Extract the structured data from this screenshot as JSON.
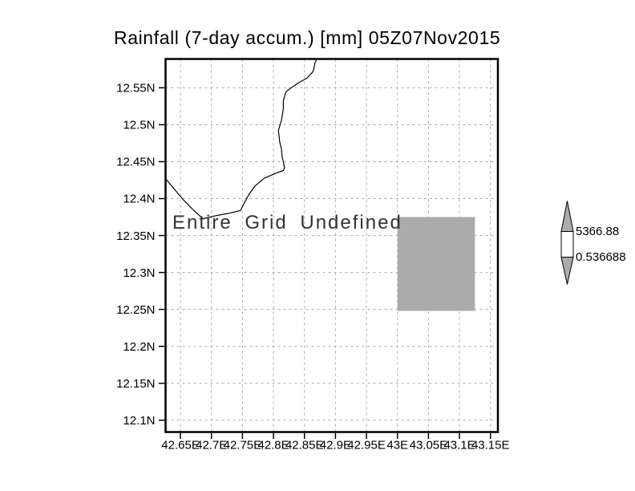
{
  "title": "Rainfall (7-day accum.) [mm] 05Z07Nov2015",
  "overlay_message": "Entire Grid Undefined",
  "colorbar": {
    "position": "right",
    "max_label": "5366.88",
    "min_label": "0.536688",
    "arrow_fill": "#ababab",
    "box_fill": "#ffffff",
    "outline": "#000000"
  },
  "chart_data": {
    "type": "heatmap",
    "subtype": "geographic-grid-map",
    "title": "Rainfall (7-day accum.) [mm] 05Z07Nov2015",
    "status_message": "Entire Grid Undefined",
    "x_axis": {
      "unit": "longitude (deg E)",
      "range": [
        42.626,
        43.162
      ],
      "tick_values": [
        42.65,
        42.7,
        42.75,
        42.8,
        42.85,
        42.9,
        42.95,
        43.0,
        43.05,
        43.1,
        43.15
      ],
      "tick_labels": [
        "42.65E",
        "42.7E",
        "42.75E",
        "42.8E",
        "42.85E",
        "42.9E",
        "42.95E",
        "43E",
        "43.05E",
        "43.1E",
        "43.15E"
      ]
    },
    "y_axis": {
      "unit": "latitude (deg N)",
      "range": [
        12.084,
        12.589
      ],
      "tick_values": [
        12.55,
        12.5,
        12.45,
        12.4,
        12.35,
        12.3,
        12.25,
        12.2,
        12.15,
        12.1
      ],
      "tick_labels": [
        "12.55N",
        "12.5N",
        "12.45N",
        "12.4N",
        "12.35N",
        "12.3N",
        "12.25N",
        "12.2N",
        "12.15N",
        "12.1N"
      ]
    },
    "grid": {
      "visible": true,
      "style": "dashed",
      "color": "#a8a8a8"
    },
    "values_plotted": "none (entire grid undefined)",
    "missing_data_box": {
      "lon": [
        43.0,
        43.125
      ],
      "lat": [
        12.248,
        12.375
      ],
      "fill": "#ababab"
    },
    "coastline": [
      [
        42.87,
        12.589
      ],
      [
        42.867,
        12.584
      ],
      [
        42.865,
        12.575
      ],
      [
        42.863,
        12.571
      ],
      [
        42.854,
        12.563
      ],
      [
        42.841,
        12.557
      ],
      [
        42.827,
        12.549
      ],
      [
        42.821,
        12.545
      ],
      [
        42.819,
        12.542
      ],
      [
        42.816,
        12.532
      ],
      [
        42.816,
        12.522
      ],
      [
        42.813,
        12.506
      ],
      [
        42.809,
        12.495
      ],
      [
        42.808,
        12.492
      ],
      [
        42.809,
        12.486
      ],
      [
        42.81,
        12.477
      ],
      [
        42.813,
        12.467
      ],
      [
        42.814,
        12.456
      ],
      [
        42.816,
        12.45
      ],
      [
        42.817,
        12.445
      ],
      [
        42.818,
        12.442
      ],
      [
        42.816,
        12.438
      ],
      [
        42.803,
        12.434
      ],
      [
        42.792,
        12.43
      ],
      [
        42.786,
        12.428
      ],
      [
        42.77,
        12.417
      ],
      [
        42.76,
        12.405
      ],
      [
        42.751,
        12.391
      ],
      [
        42.747,
        12.384
      ],
      [
        42.728,
        12.38
      ],
      [
        42.708,
        12.377
      ],
      [
        42.693,
        12.374
      ],
      [
        42.686,
        12.373
      ],
      [
        42.669,
        12.386
      ],
      [
        42.654,
        12.399
      ],
      [
        42.64,
        12.413
      ],
      [
        42.627,
        12.426
      ]
    ],
    "colorbar": {
      "max": 5366.88,
      "min": 0.536688,
      "max_label": "5366.88",
      "min_label": "0.536688"
    },
    "legend_position": "right"
  }
}
